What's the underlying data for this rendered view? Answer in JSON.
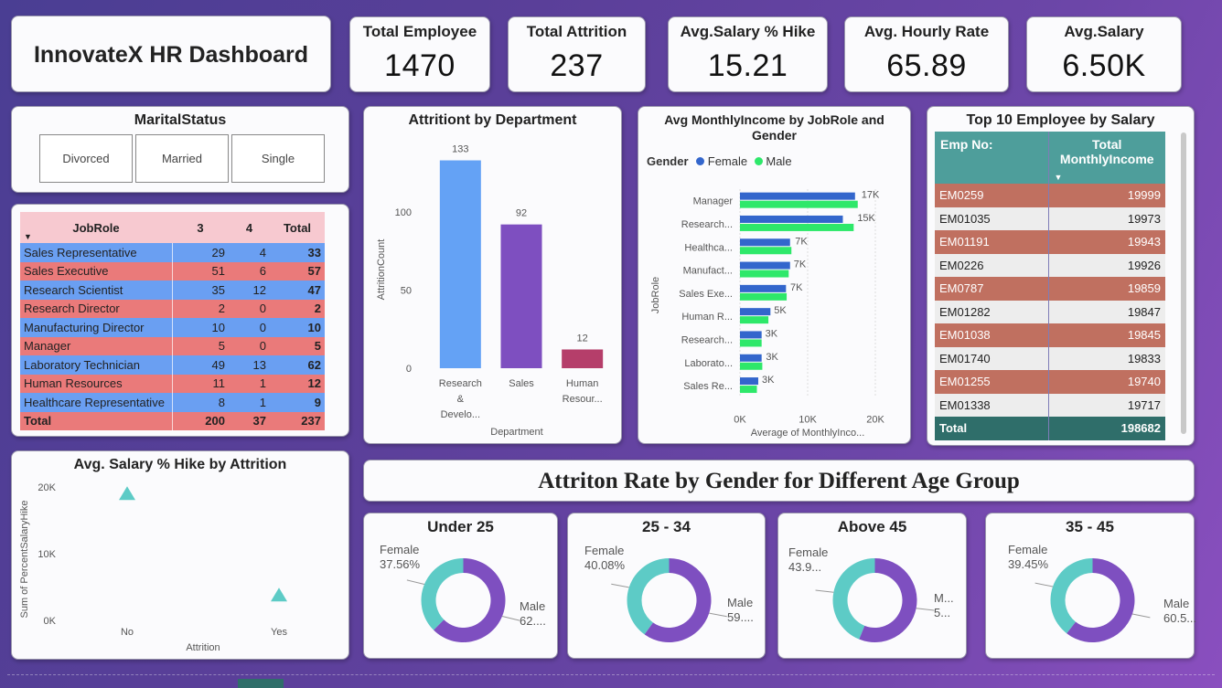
{
  "dashboard": {
    "title": "InnovateX HR Dashboard"
  },
  "kpis": [
    {
      "label": "Total Employee",
      "value": "1470"
    },
    {
      "label": "Total Attrition",
      "value": "237"
    },
    {
      "label": "Avg.Salary % Hike",
      "value": "15.21"
    },
    {
      "label": "Avg. Hourly Rate",
      "value": "65.89"
    },
    {
      "label": "Avg.Salary",
      "value": "6.50K"
    }
  ],
  "marital_slicer": {
    "title": "MaritalStatus",
    "options": [
      "Divorced",
      "Married",
      "Single"
    ]
  },
  "jobrole_matrix": {
    "headers": [
      "JobRole",
      "3",
      "4",
      "Total"
    ],
    "rows": [
      {
        "role": "Sales Representative",
        "c3": "29",
        "c4": "4",
        "total": "33"
      },
      {
        "role": "Sales Executive",
        "c3": "51",
        "c4": "6",
        "total": "57"
      },
      {
        "role": "Research Scientist",
        "c3": "35",
        "c4": "12",
        "total": "47"
      },
      {
        "role": "Research Director",
        "c3": "2",
        "c4": "0",
        "total": "2"
      },
      {
        "role": "Manufacturing Director",
        "c3": "10",
        "c4": "0",
        "total": "10"
      },
      {
        "role": "Manager",
        "c3": "5",
        "c4": "0",
        "total": "5"
      },
      {
        "role": "Laboratory Technician",
        "c3": "49",
        "c4": "13",
        "total": "62"
      },
      {
        "role": "Human Resources",
        "c3": "11",
        "c4": "1",
        "total": "12"
      },
      {
        "role": "Healthcare Representative",
        "c3": "8",
        "c4": "1",
        "total": "9"
      }
    ],
    "total": {
      "role": "Total",
      "c3": "200",
      "c4": "37",
      "total": "237"
    }
  },
  "attrition_by_dept": {
    "title": "Attritiont by Department",
    "chart_data": {
      "type": "bar",
      "categories": [
        "Research & Develo...",
        "Sales",
        "Human Resour..."
      ],
      "category_lines": [
        [
          "Research",
          "&",
          "Develo..."
        ],
        [
          "Sales"
        ],
        [
          "Human",
          "Resour..."
        ]
      ],
      "values": [
        133,
        92,
        12
      ],
      "colors": [
        "#64a2f5",
        "#7e4fc0",
        "#b53e6a"
      ],
      "xlabel": "Department",
      "ylabel": "AttritionCount",
      "yticks": [
        0,
        50,
        100
      ],
      "ylim": [
        0,
        145
      ]
    }
  },
  "income_by_role": {
    "title_line1": "Avg MonthlyIncome by JobRole and",
    "title_line2": "Gender",
    "legend_title": "Gender",
    "chart_data": {
      "type": "bar",
      "orientation": "horizontal",
      "categories": [
        "Manager",
        "Research...",
        "Healthca...",
        "Manufact...",
        "Sales Exe...",
        "Human R...",
        "Research...",
        "Laborato...",
        "Sales Re..."
      ],
      "series": [
        {
          "name": "Female",
          "color": "#3366cc",
          "values": [
            17000,
            15200,
            7400,
            7400,
            6800,
            4500,
            3200,
            3200,
            2700
          ]
        },
        {
          "name": "Male",
          "color": "#2ee86a",
          "values": [
            17400,
            16800,
            7600,
            7200,
            6900,
            4200,
            3200,
            3300,
            2500
          ]
        }
      ],
      "data_labels": [
        "17K",
        "15K",
        "7K",
        "7K",
        "7K",
        "5K",
        "3K",
        "3K",
        "3K"
      ],
      "xticks": [
        "0K",
        "10K",
        "20K"
      ],
      "xlim": [
        0,
        20000
      ],
      "xlabel": "Average of MonthlyInco...",
      "ylabel": "JobRole"
    }
  },
  "top10": {
    "title": "Top 10 Employee by Salary",
    "col1": "Emp No:",
    "col2": "Total MonthlyIncome",
    "rows": [
      {
        "emp": "EM0259",
        "income": "19999"
      },
      {
        "emp": "EM01035",
        "income": "19973"
      },
      {
        "emp": "EM01191",
        "income": "19943"
      },
      {
        "emp": "EM0226",
        "income": "19926"
      },
      {
        "emp": "EM0787",
        "income": "19859"
      },
      {
        "emp": "EM01282",
        "income": "19847"
      },
      {
        "emp": "EM01038",
        "income": "19845"
      },
      {
        "emp": "EM01740",
        "income": "19833"
      },
      {
        "emp": "EM01255",
        "income": "19740"
      },
      {
        "emp": "EM01338",
        "income": "19717"
      }
    ],
    "total_label": "Total",
    "total_value": "198682"
  },
  "hike_by_attrition": {
    "title": "Avg. Salary % Hike by Attrition",
    "chart_data": {
      "type": "scatter",
      "categories": [
        "No",
        "Yes"
      ],
      "values": [
        19000,
        3800
      ],
      "color": "#5dcbc6",
      "yticks": [
        "0K",
        "10K",
        "20K"
      ],
      "ylim": [
        0,
        20000
      ],
      "xlabel": "Attrition",
      "ylabel": "Sum of PercentSalaryHike"
    }
  },
  "age_group_section": {
    "title": "Attriton Rate by Gender for Different Age Group"
  },
  "donuts": {
    "chart_data": [
      {
        "type": "pie",
        "title": "Under 25",
        "female_label": "Female",
        "female_pct": "37.56%",
        "male_label": "Male",
        "male_pct": "62....",
        "female_share": 0.3756
      },
      {
        "type": "pie",
        "title": "25 - 34",
        "female_label": "Female",
        "female_pct": "40.08%",
        "male_label": "Male",
        "male_pct": "59....",
        "female_share": 0.4008
      },
      {
        "type": "pie",
        "title": "Above 45",
        "female_label": "Female",
        "female_pct": "43.9...",
        "male_label": "M...",
        "male_pct": "5...",
        "female_share": 0.439
      },
      {
        "type": "pie",
        "title": "35 - 45",
        "female_label": "Female",
        "female_pct": "39.45%",
        "male_label": "Male",
        "male_pct": "60.5...",
        "female_share": 0.3945
      }
    ],
    "colors": {
      "female": "#5dcbc6",
      "male": "#7e4fc0"
    }
  }
}
